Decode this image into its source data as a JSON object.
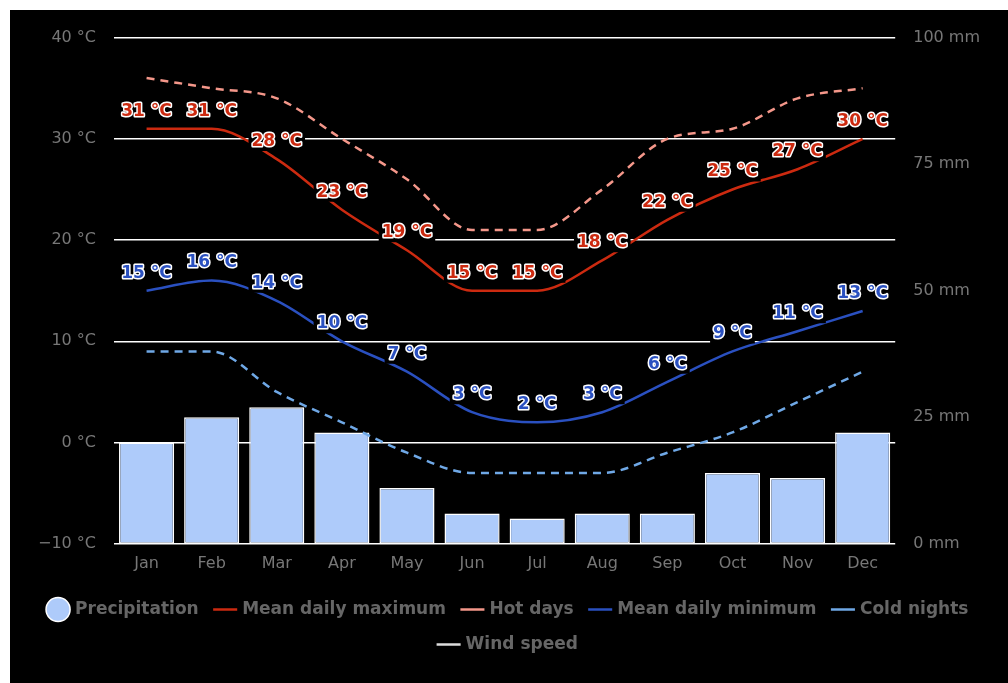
{
  "chart_data": {
    "type": "line",
    "categories": [
      "Jan",
      "Feb",
      "Mar",
      "Apr",
      "May",
      "Jun",
      "Jul",
      "Aug",
      "Sep",
      "Oct",
      "Nov",
      "Dec"
    ],
    "series": [
      {
        "name": "Precipitation",
        "type": "bar",
        "axis": "y2",
        "color": "#aecbfa",
        "values": [
          20,
          25,
          27,
          22,
          11,
          6,
          5,
          6,
          6,
          14,
          13,
          22
        ]
      },
      {
        "name": "Mean daily maximum",
        "color": "#cc2a10",
        "line_style": "solid",
        "values": [
          31,
          31,
          28,
          23,
          19,
          15,
          15,
          18,
          22,
          25,
          27,
          30
        ],
        "value_labels": [
          "31 °C",
          "31 °C",
          "28 °C",
          "23 °C",
          "19 °C",
          "15 °C",
          "15 °C",
          "18 °C",
          "22 °C",
          "25 °C",
          "27 °C",
          "30 °C"
        ]
      },
      {
        "name": "Hot days",
        "color": "#f4978a",
        "line_style": "dashed",
        "values": [
          36,
          35,
          34,
          30,
          26,
          21,
          21,
          25,
          30,
          31,
          34,
          35
        ]
      },
      {
        "name": "Mean daily minimum",
        "color": "#2a50c0",
        "line_style": "solid",
        "values": [
          15,
          16,
          14,
          10,
          7,
          3,
          2,
          3,
          6,
          9,
          11,
          13
        ],
        "value_labels": [
          "15 °C",
          "16 °C",
          "14 °C",
          "10 °C",
          "7 °C",
          "3 °C",
          "2 °C",
          "3 °C",
          "6 °C",
          "9 °C",
          "11 °C",
          "13 °C"
        ]
      },
      {
        "name": "Cold nights",
        "color": "#6fa8e6",
        "line_style": "dashed",
        "values": [
          9,
          9,
          5,
          2,
          -1,
          -3,
          -3,
          -3,
          -1,
          1,
          4,
          7
        ]
      },
      {
        "name": "Wind speed",
        "color": "#dddddd",
        "line_style": "solid",
        "values": [
          null,
          null,
          null,
          null,
          null,
          null,
          null,
          null,
          null,
          null,
          null,
          null
        ]
      }
    ],
    "ylim": [
      -10,
      40
    ],
    "yticks": [
      {
        "value": -10,
        "label": "−10 °C"
      },
      {
        "value": 0,
        "label": "0 °C"
      },
      {
        "value": 10,
        "label": "10 °C"
      },
      {
        "value": 20,
        "label": "20 °C"
      },
      {
        "value": 30,
        "label": "30 °C"
      },
      {
        "value": 40,
        "label": "40 °C"
      }
    ],
    "y2lim": [
      0,
      100
    ],
    "y2ticks": [
      {
        "value": 0,
        "label": "0 mm"
      },
      {
        "value": 25,
        "label": "25 mm"
      },
      {
        "value": 50,
        "label": "50 mm"
      },
      {
        "value": 75,
        "label": "75 mm"
      },
      {
        "value": 100,
        "label": "100 mm"
      }
    ],
    "grid": "y",
    "legend": "bottom",
    "marker": "none"
  }
}
